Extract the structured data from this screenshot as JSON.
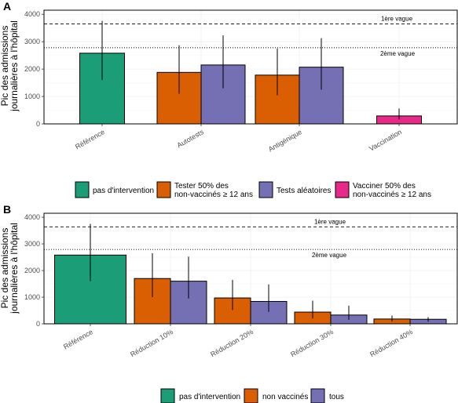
{
  "colors": {
    "teal": "#1b9e77",
    "orange": "#d95f02",
    "purple": "#7570b3",
    "pink": "#e7298a",
    "panel_bg": "#ffffff",
    "grid": "#ebebeb"
  },
  "chart_data": [
    {
      "panel": "A",
      "type": "bar",
      "ylabel": [
        "Pic des admissions",
        "journalières à l'hôpital"
      ],
      "ylim": [
        0,
        4150
      ],
      "yticks": [
        0,
        1000,
        2000,
        3000,
        4000
      ],
      "categories": [
        "Référence",
        "Autotests",
        "Antigénique",
        "Vaccination"
      ],
      "bars": [
        {
          "category": "Référence",
          "group": "pas d'intervention",
          "value": 2580,
          "err_low": 1600,
          "err_high": 3760
        },
        {
          "category": "Autotests",
          "group": "Tester 50% des non-vaccinés ≥ 12 ans",
          "value": 1880,
          "err_low": 1100,
          "err_high": 2870
        },
        {
          "category": "Autotests",
          "group": "Tests aléatoires",
          "value": 2150,
          "err_low": 1300,
          "err_high": 3230
        },
        {
          "category": "Antigénique",
          "group": "Tester 50% des non-vaccinés ≥ 12 ans",
          "value": 1780,
          "err_low": 1050,
          "err_high": 2750
        },
        {
          "category": "Antigénique",
          "group": "Tests aléatoires",
          "value": 2070,
          "err_low": 1250,
          "err_high": 3130
        },
        {
          "category": "Vaccination",
          "group": "Vacciner 50% des non-vaccinés ≥ 12 ans",
          "value": 290,
          "err_low": 160,
          "err_high": 560
        }
      ],
      "reference_lines": [
        {
          "label": "1ère vague",
          "value": 3650,
          "style": "dashed"
        },
        {
          "label": "2ème vague",
          "value": 2780,
          "style": "dotted"
        }
      ],
      "legend": [
        {
          "label": "pas d'intervention",
          "color": "#1b9e77"
        },
        {
          "label": "Tester 50% des non-vaccinés ≥ 12 ans",
          "color": "#d95f02"
        },
        {
          "label": "Tests aléatoires",
          "color": "#7570b3"
        },
        {
          "label": "Vacciner 50% des non-vaccinés ≥ 12 ans",
          "color": "#e7298a"
        }
      ]
    },
    {
      "panel": "B",
      "type": "bar",
      "ylabel": [
        "Pic des admissions",
        "journalières à l'hôpital"
      ],
      "ylim": [
        0,
        4150
      ],
      "yticks": [
        0,
        1000,
        2000,
        3000,
        4000
      ],
      "categories": [
        "Référence",
        "Réduction 10%",
        "Réduction 20%",
        "Réduction 30%",
        "Réduction 40%"
      ],
      "bars": [
        {
          "category": "Référence",
          "group": "pas d'intervention",
          "value": 2580,
          "err_low": 1600,
          "err_high": 3750
        },
        {
          "category": "Réduction 10%",
          "group": "non vaccinés",
          "value": 1700,
          "err_low": 1000,
          "err_high": 2650
        },
        {
          "category": "Réduction 10%",
          "group": "tous",
          "value": 1600,
          "err_low": 950,
          "err_high": 2520
        },
        {
          "category": "Réduction 20%",
          "group": "non vaccinés",
          "value": 970,
          "err_low": 520,
          "err_high": 1650
        },
        {
          "category": "Réduction 20%",
          "group": "tous",
          "value": 840,
          "err_low": 450,
          "err_high": 1480
        },
        {
          "category": "Réduction 30%",
          "group": "non vaccinés",
          "value": 440,
          "err_low": 200,
          "err_high": 870
        },
        {
          "category": "Réduction 30%",
          "group": "tous",
          "value": 330,
          "err_low": 150,
          "err_high": 680
        },
        {
          "category": "Réduction 40%",
          "group": "non vaccinés",
          "value": 180,
          "err_low": 80,
          "err_high": 310
        },
        {
          "category": "Réduction 40%",
          "group": "tous",
          "value": 170,
          "err_low": 80,
          "err_high": 250
        }
      ],
      "reference_lines": [
        {
          "label": "1ère vague",
          "value": 3640,
          "style": "dashed"
        },
        {
          "label": "2ème vague",
          "value": 2790,
          "style": "dotted"
        }
      ],
      "legend": [
        {
          "label": "pas d'intervention",
          "color": "#1b9e77"
        },
        {
          "label": "non vaccinés",
          "color": "#d95f02"
        },
        {
          "label": "tous",
          "color": "#7570b3"
        }
      ]
    }
  ]
}
